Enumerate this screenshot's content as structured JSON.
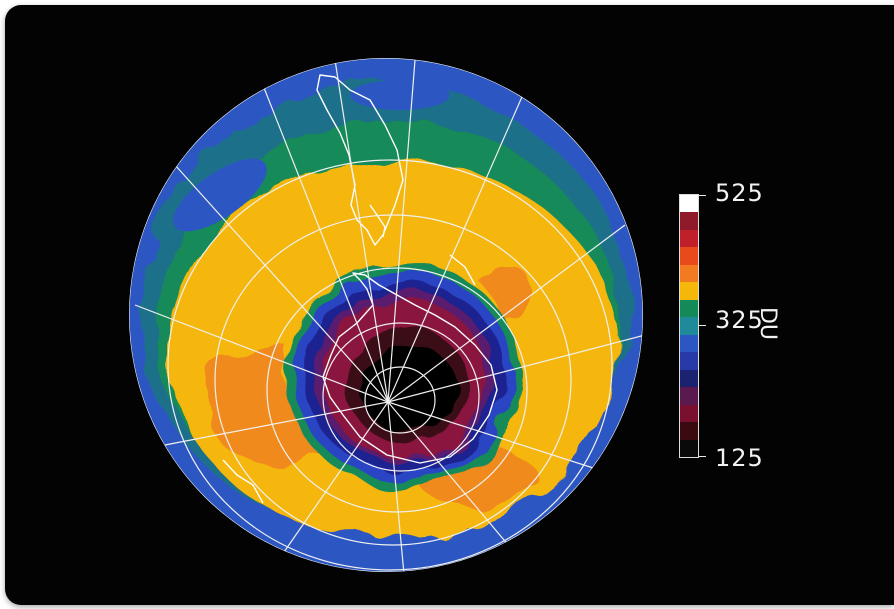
{
  "map": {
    "projection": "south-polar-orthographic",
    "background_color": "#030303",
    "graticule_color": "#f0f0f0",
    "coastline_color": "#ffffff",
    "ozone_rings": [
      {
        "level": "low-outer-blue",
        "color": "#2c57c2"
      },
      {
        "level": "mid-green",
        "color": "#138a58"
      },
      {
        "level": "high-yellow",
        "color": "#f5b70a"
      },
      {
        "level": "peak-orange",
        "color": "#f08a1a"
      },
      {
        "level": "hole-blue",
        "color": "#2a44c4"
      },
      {
        "level": "hole-navy",
        "color": "#1b2390"
      },
      {
        "level": "hole-purple",
        "color": "#5a1a6e"
      },
      {
        "level": "hole-magenta",
        "color": "#8a1240"
      },
      {
        "level": "hole-core",
        "color": "#050505"
      }
    ]
  },
  "legend": {
    "max_label": "525",
    "mid_label": "325",
    "min_label": "125",
    "unit": "DU",
    "colors": [
      "#ffffff",
      "#8f1a2a",
      "#c0202a",
      "#e84a1c",
      "#f27a20",
      "#f5b70a",
      "#138a58",
      "#1e8a9a",
      "#2c57c2",
      "#283aa8",
      "#1b2370",
      "#5a1a50",
      "#7a1030",
      "#3a0a10",
      "#0a0a0a"
    ]
  }
}
